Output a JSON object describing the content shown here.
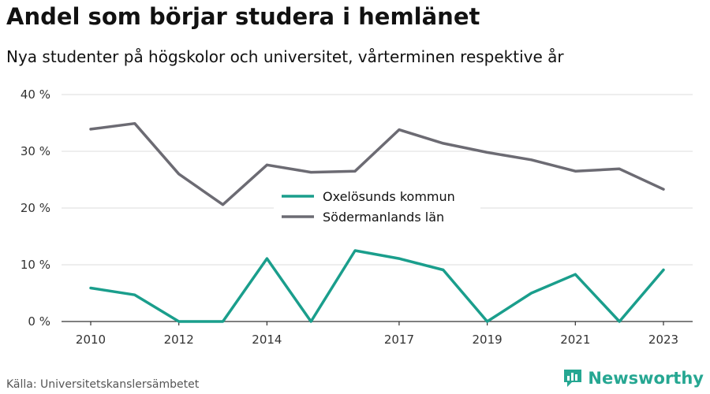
{
  "header": {
    "title": "Andel som börjar studera i hemlänet",
    "subtitle": "Nya studenter på högskolor och universitet, vårterminen respektive år"
  },
  "footer": {
    "source": "Källa: Universitetskanslersämbetet",
    "brand": "Newsworthy"
  },
  "icons": {
    "brand_logo": "bar-chart-logo-icon"
  },
  "colors": {
    "teal": "#1a9e8c",
    "gray": "#6c6b73",
    "brand": "#26a792"
  },
  "chart_data": {
    "type": "line",
    "x": [
      2010,
      2011,
      2012,
      2013,
      2014,
      2015,
      2016,
      2017,
      2018,
      2019,
      2020,
      2021,
      2022,
      2023
    ],
    "x_tick_labels": [
      "2010",
      "2012",
      "2014",
      "2017",
      "2019",
      "2021",
      "2023"
    ],
    "y_tick_labels": [
      "0 %",
      "10 %",
      "20 %",
      "30 %",
      "40 %"
    ],
    "ylim": [
      0,
      40
    ],
    "grid": true,
    "legend_position": "center",
    "series": [
      {
        "name": "Oxelösunds kommun",
        "color": "#1a9e8c",
        "values": [
          5.9,
          4.7,
          0,
          0,
          11.1,
          0,
          12.5,
          11.1,
          9.1,
          0,
          5.0,
          8.3,
          0,
          9.1
        ]
      },
      {
        "name": "Södermanlands län",
        "color": "#6c6b73",
        "values": [
          33.9,
          34.9,
          26.0,
          20.6,
          27.6,
          26.3,
          26.5,
          33.8,
          31.4,
          29.8,
          28.5,
          26.5,
          26.9,
          23.3
        ]
      }
    ]
  }
}
